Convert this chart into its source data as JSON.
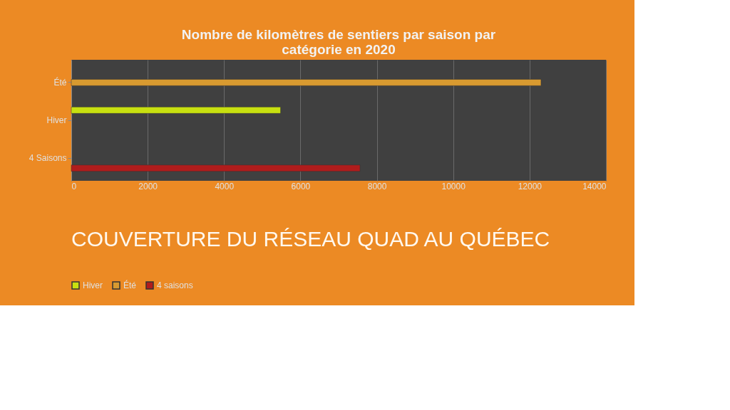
{
  "chart_data": {
    "type": "bar",
    "orientation": "horizontal",
    "title": [
      "Nombre de kilomètres de sentiers par saison par",
      "catégorie en 2020"
    ],
    "categories": [
      "Été",
      "Hiver",
      "4 Saisons"
    ],
    "series": [
      {
        "name": "Hiver",
        "color": "#c8e010",
        "values": [
          null,
          5480,
          null
        ]
      },
      {
        "name": "Été",
        "color": "#d89a30",
        "values": [
          12300,
          null,
          null
        ]
      },
      {
        "name": "4 saisons",
        "color": "#b01c1c",
        "values": [
          null,
          null,
          7560
        ]
      }
    ],
    "xlim": [
      0,
      14000
    ],
    "xticks": [
      0,
      2000,
      4000,
      6000,
      8000,
      10000,
      12000,
      14000
    ],
    "grid": "x",
    "legend": "bottom",
    "annotations": [
      "COUVERTURE DU RÉSEAU QUAD AU QUÉBEC"
    ]
  }
}
